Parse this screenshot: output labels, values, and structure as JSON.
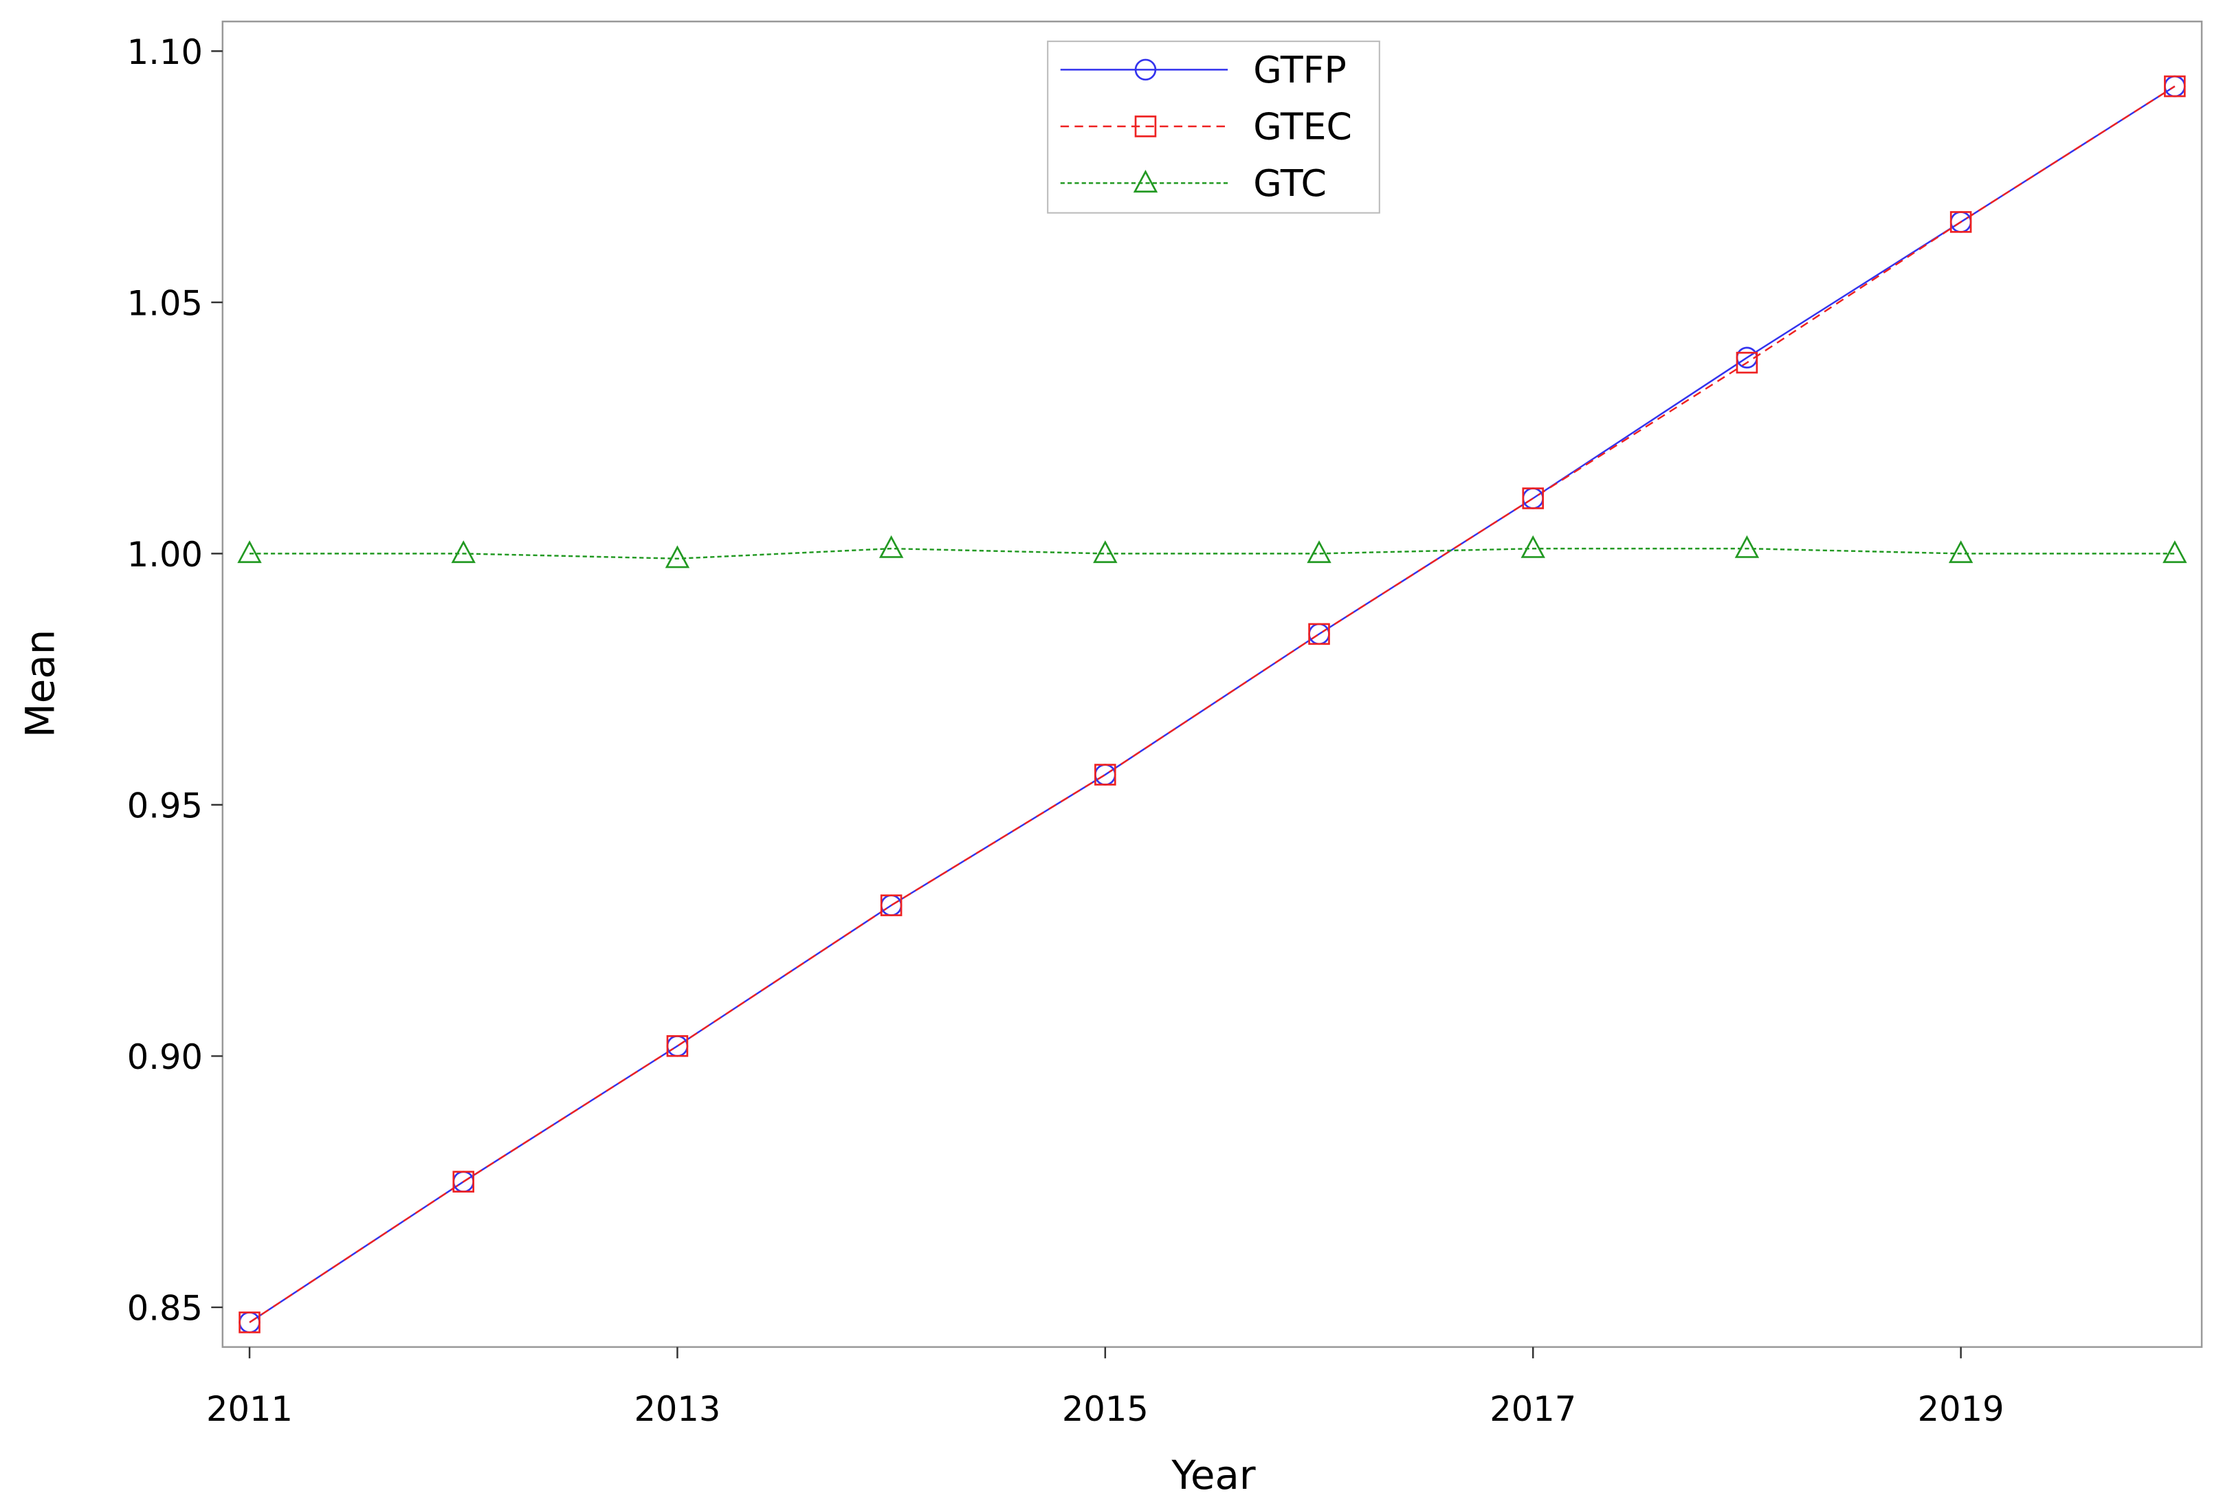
{
  "chart_data": {
    "type": "line",
    "x_label": "Year",
    "y_label": "Mean",
    "x": [
      2011,
      2012,
      2013,
      2014,
      2015,
      2016,
      2017,
      2018,
      2019,
      2020
    ],
    "series": [
      {
        "name": "GTFP",
        "color": "#3333ee",
        "marker": "circle",
        "dash": "solid",
        "values": [
          0.847,
          0.875,
          0.902,
          0.93,
          0.956,
          0.984,
          1.011,
          1.039,
          1.066,
          1.093
        ]
      },
      {
        "name": "GTEC",
        "color": "#ee2222",
        "marker": "square",
        "dash": "dashed",
        "values": [
          0.847,
          0.875,
          0.902,
          0.93,
          0.956,
          0.984,
          1.011,
          1.038,
          1.066,
          1.093
        ]
      },
      {
        "name": "GTC",
        "color": "#229922",
        "marker": "triangle",
        "dash": "dotted",
        "values": [
          1.0,
          1.0,
          0.999,
          1.001,
          1.0,
          1.0,
          1.001,
          1.001,
          1.0,
          1.0
        ]
      }
    ],
    "xlim": [
      2010.874,
      2020.126
    ],
    "ylim": [
      0.8421,
      1.1059
    ],
    "xticks": [
      2011,
      2013,
      2015,
      2017,
      2019
    ],
    "yticks": [
      {
        "value": 0.85,
        "label": "0.85"
      },
      {
        "value": 0.9,
        "label": "0.90"
      },
      {
        "value": 0.95,
        "label": "0.95"
      },
      {
        "value": 1.0,
        "label": "1.00"
      },
      {
        "value": 1.05,
        "label": "1.05"
      },
      {
        "value": 1.1,
        "label": "1.10"
      }
    ],
    "legend": "top"
  }
}
